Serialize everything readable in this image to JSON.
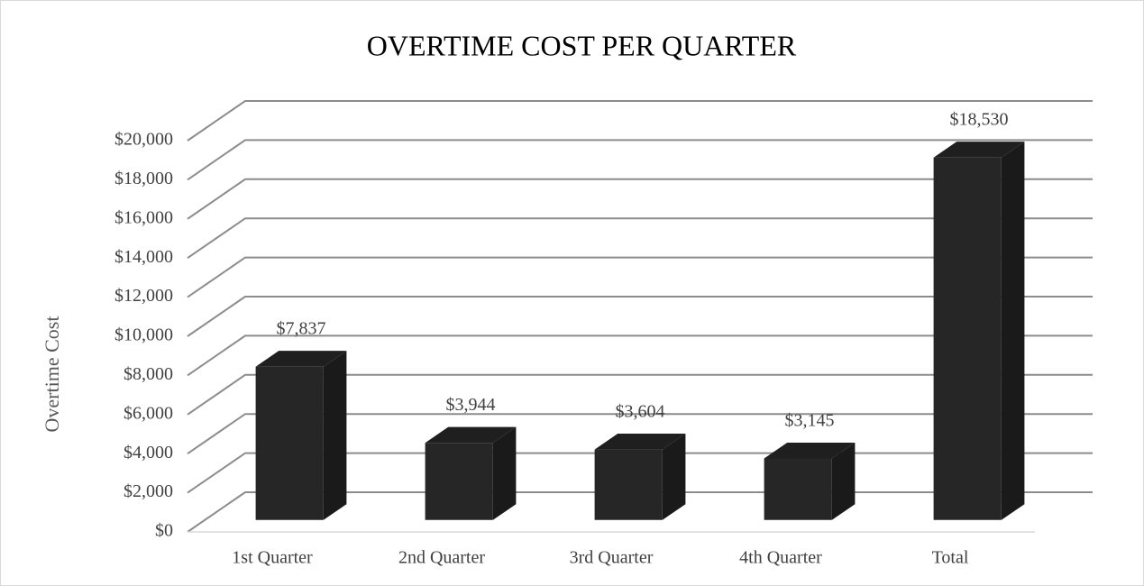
{
  "chart_data": {
    "type": "bar3d",
    "title": "OVERTIME COST PER QUARTER",
    "y_label": "Overtime Cost",
    "categories": [
      "1st Quarter",
      "2nd Quarter",
      "3rd Quarter",
      "4th Quarter",
      "Total"
    ],
    "values": [
      7837,
      3944,
      3604,
      3145,
      18530
    ],
    "value_labels": [
      "$7,837",
      "$3,944",
      "$3,604",
      "$3,145",
      "$18,530"
    ],
    "color": "#262626",
    "ylim": [
      0,
      20000
    ],
    "yticks": [
      {
        "value": 0,
        "label": "$0"
      },
      {
        "value": 2000,
        "label": "$2,000"
      },
      {
        "value": 4000,
        "label": "$4,000"
      },
      {
        "value": 6000,
        "label": "$6,000"
      },
      {
        "value": 8000,
        "label": "$8,000"
      },
      {
        "value": 10000,
        "label": "$10,000"
      },
      {
        "value": 12000,
        "label": "$12,000"
      },
      {
        "value": 14000,
        "label": "$14,000"
      },
      {
        "value": 16000,
        "label": "$16,000"
      },
      {
        "value": 18000,
        "label": "$18,000"
      },
      {
        "value": 20000,
        "label": "$20,000"
      }
    ],
    "grid": true
  }
}
